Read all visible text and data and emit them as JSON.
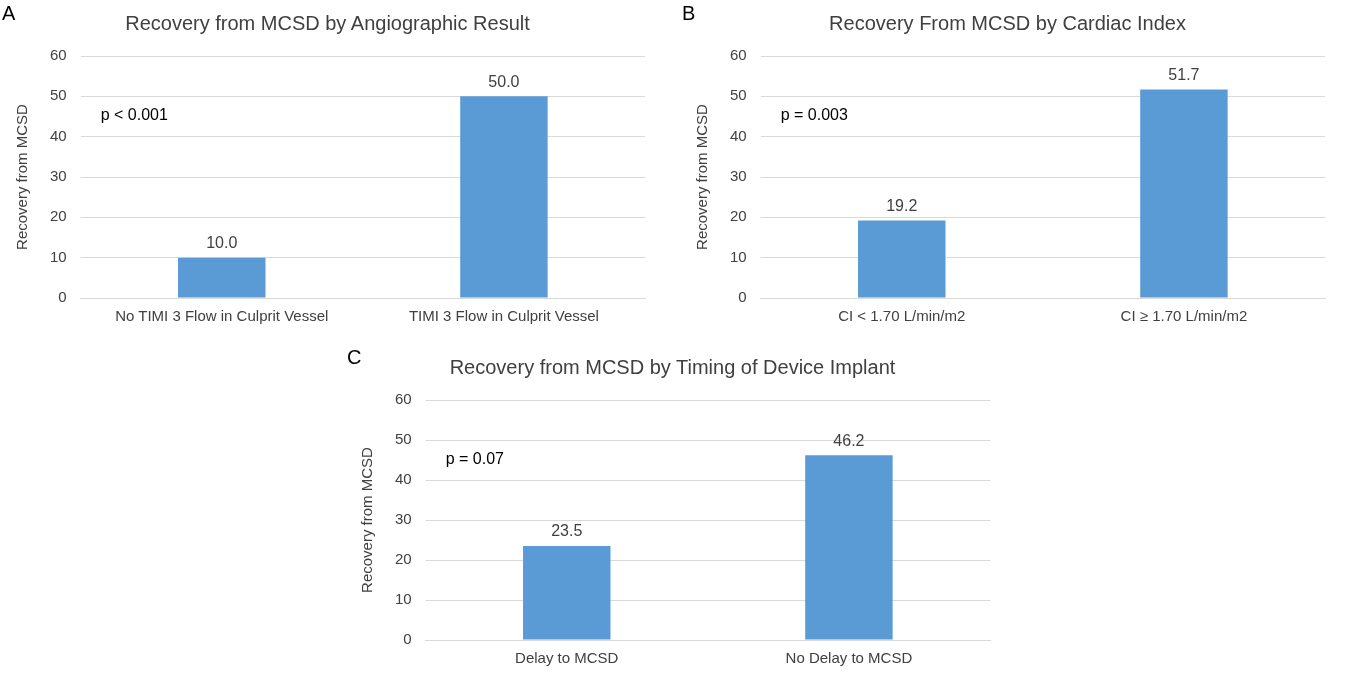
{
  "chart_data": [
    {
      "type": "bar",
      "title": "Recovery from MCSD by Angiographic Result",
      "ylabel": "Recovery from MCSD",
      "categories": [
        "No TIMI 3 Flow in Culprit Vessel",
        "TIMI 3 Flow in Culprit Vessel"
      ],
      "values": [
        10.0,
        50.0
      ],
      "value_labels": [
        "10.0",
        "50.0"
      ],
      "color": "#5b9bd5",
      "ylim": [
        0,
        60
      ],
      "yticks": [
        0,
        10,
        20,
        30,
        40,
        50,
        60
      ],
      "grid": "y",
      "annotations": [
        "A",
        "p < 0.001"
      ]
    },
    {
      "type": "bar",
      "title": "Recovery From MCSD by Cardiac Index",
      "ylabel": "Recovery from MCSD",
      "categories": [
        "CI < 1.70 L/min/m2",
        "CI ≥ 1.70 L/min/m2"
      ],
      "values": [
        19.2,
        51.7
      ],
      "value_labels": [
        "19.2",
        "51.7"
      ],
      "color": "#5b9bd5",
      "ylim": [
        0,
        60
      ],
      "yticks": [
        0,
        10,
        20,
        30,
        40,
        50,
        60
      ],
      "grid": "y",
      "annotations": [
        "B",
        "p = 0.003"
      ]
    },
    {
      "type": "bar",
      "title": "Recovery from MCSD by Timing of Device Implant",
      "ylabel": "Recovery from MCSD",
      "categories": [
        "Delay to MCSD",
        "No Delay to MCSD"
      ],
      "values": [
        23.5,
        46.2
      ],
      "value_labels": [
        "23.5",
        "46.2"
      ],
      "color": "#5b9bd5",
      "ylim": [
        0,
        60
      ],
      "yticks": [
        0,
        10,
        20,
        30,
        40,
        50,
        60
      ],
      "grid": "y",
      "annotations": [
        "C",
        "p = 0.07"
      ]
    }
  ]
}
